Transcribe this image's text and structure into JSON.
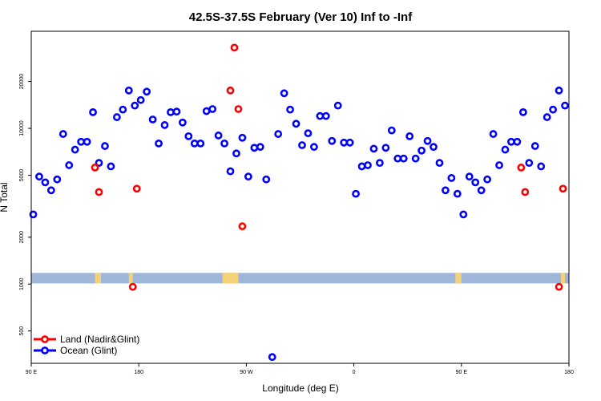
{
  "chart_data": {
    "type": "scatter",
    "title": "42.5S-37.5S February (Ver 10)   Inf to -Inf",
    "xlabel": "Longitude (deg E)",
    "ylabel": "N Total",
    "y_scale": "log",
    "xlim": [
      -90,
      180
    ],
    "ylim": [
      310,
      42000
    ],
    "xticks": [
      {
        "value": -90,
        "label": "90 E"
      },
      {
        "value": -36,
        "label": "180"
      },
      {
        "value": 18,
        "label": "90 W"
      },
      {
        "value": 72,
        "label": "0"
      },
      {
        "value": 126,
        "label": "90 E"
      },
      {
        "value": 180,
        "label": "180"
      }
    ],
    "yticks": [
      {
        "value": 500,
        "label": "500"
      },
      {
        "value": 1000,
        "label": "1000"
      },
      {
        "value": 2000,
        "label": "2000"
      },
      {
        "value": 5000,
        "label": "5000"
      },
      {
        "value": 10000,
        "label": "10000"
      },
      {
        "value": 20000,
        "label": "20000"
      }
    ],
    "grid": false,
    "legend_position": "bottom-left",
    "land_band": {
      "y_low": 1010,
      "y_high": 1180,
      "color": "#9fb6d8",
      "land_color": "#f3d27a",
      "land_ranges": [
        [
          -58,
          -55
        ],
        [
          -41,
          -39
        ],
        [
          6,
          14
        ],
        [
          123,
          126
        ],
        [
          176,
          178
        ]
      ]
    },
    "series": [
      {
        "name": "Land (Nadir&Glint)",
        "color": "#ff0000",
        "points": [
          [
            -58,
            5600
          ],
          [
            -56,
            3900
          ],
          [
            -39,
            960
          ],
          [
            -37,
            4100
          ],
          [
            10,
            17500
          ],
          [
            12,
            33000
          ],
          [
            14,
            13300
          ],
          [
            16,
            2350
          ],
          [
            156,
            5600
          ],
          [
            158,
            3900
          ],
          [
            175,
            960
          ],
          [
            177,
            4100
          ]
        ]
      },
      {
        "name": "Ocean (Glint)",
        "color": "#0000ff",
        "points": [
          [
            -89,
            2800
          ],
          [
            -86,
            4900
          ],
          [
            -83,
            4500
          ],
          [
            -80,
            4000
          ],
          [
            -77,
            4700
          ],
          [
            -74,
            9200
          ],
          [
            -71,
            5800
          ],
          [
            -68,
            7300
          ],
          [
            -65,
            8200
          ],
          [
            -62,
            8200
          ],
          [
            -59,
            12700
          ],
          [
            -56,
            6000
          ],
          [
            -53,
            7700
          ],
          [
            -50,
            5700
          ],
          [
            -47,
            11800
          ],
          [
            -44,
            13200
          ],
          [
            -41,
            17500
          ],
          [
            -38,
            14000
          ],
          [
            -35,
            15200
          ],
          [
            -32,
            17200
          ],
          [
            -29,
            11400
          ],
          [
            -26,
            8000
          ],
          [
            -23,
            10500
          ],
          [
            -20,
            12700
          ],
          [
            -17,
            12800
          ],
          [
            -14,
            10900
          ],
          [
            -11,
            8900
          ],
          [
            -8,
            8000
          ],
          [
            -5,
            8000
          ],
          [
            -2,
            12900
          ],
          [
            1,
            13300
          ],
          [
            4,
            9000
          ],
          [
            7,
            8000
          ],
          [
            10,
            5300
          ],
          [
            13,
            6900
          ],
          [
            16,
            8700
          ],
          [
            19,
            4900
          ],
          [
            22,
            7500
          ],
          [
            25,
            7600
          ],
          [
            28,
            4700
          ],
          [
            31,
            340
          ],
          [
            34,
            9200
          ],
          [
            37,
            16800
          ],
          [
            40,
            13200
          ],
          [
            43,
            10700
          ],
          [
            46,
            7800
          ],
          [
            49,
            9300
          ],
          [
            52,
            7600
          ],
          [
            55,
            12000
          ],
          [
            58,
            12000
          ],
          [
            61,
            8300
          ],
          [
            64,
            14000
          ],
          [
            67,
            8100
          ],
          [
            70,
            8100
          ],
          [
            73,
            3800
          ],
          [
            76,
            5700
          ],
          [
            79,
            5800
          ],
          [
            82,
            7400
          ],
          [
            85,
            6000
          ],
          [
            88,
            7500
          ],
          [
            91,
            9700
          ],
          [
            94,
            6400
          ],
          [
            97,
            6400
          ],
          [
            100,
            8900
          ],
          [
            103,
            6400
          ],
          [
            106,
            7200
          ],
          [
            109,
            8300
          ],
          [
            112,
            7600
          ],
          [
            115,
            6000
          ],
          [
            118,
            4000
          ],
          [
            121,
            4800
          ],
          [
            124,
            3800
          ],
          [
            127,
            2800
          ],
          [
            130,
            4900
          ],
          [
            133,
            4500
          ],
          [
            136,
            4000
          ],
          [
            139,
            4700
          ],
          [
            142,
            9200
          ],
          [
            145,
            5800
          ],
          [
            148,
            7300
          ],
          [
            151,
            8200
          ],
          [
            154,
            8200
          ],
          [
            157,
            12700
          ],
          [
            160,
            6000
          ],
          [
            163,
            7700
          ],
          [
            166,
            5700
          ],
          [
            169,
            11800
          ],
          [
            172,
            13200
          ],
          [
            175,
            17500
          ],
          [
            178,
            14000
          ]
        ]
      }
    ]
  }
}
